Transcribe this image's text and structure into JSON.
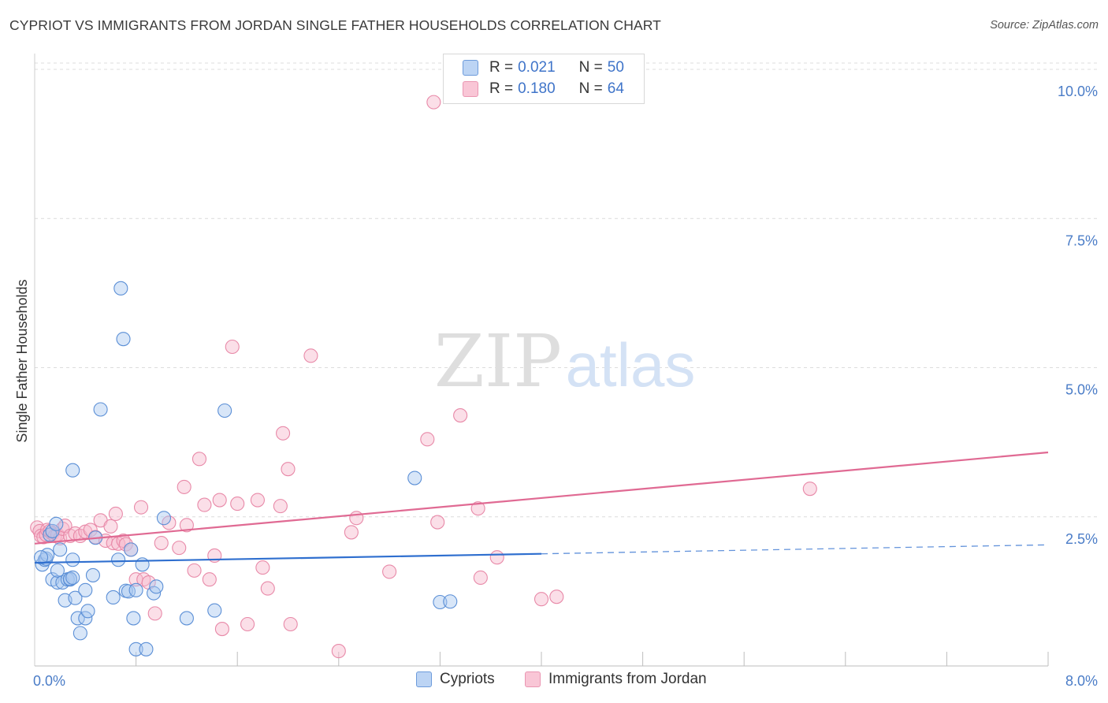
{
  "header": {
    "title": "CYPRIOT VS IMMIGRANTS FROM JORDAN SINGLE FATHER HOUSEHOLDS CORRELATION CHART",
    "source": "Source: ZipAtlas.com"
  },
  "watermark": {
    "zip": "ZIP",
    "atlas": "atlas"
  },
  "colors": {
    "cypriot_fill": "#a9c8f0",
    "cypriot_stroke": "#5b8fd6",
    "cypriot_line": "#2f6fcf",
    "jordan_fill": "#f7b9cd",
    "jordan_stroke": "#e889a8",
    "jordan_line": "#e06a93",
    "tick_label": "#4a7cc7",
    "grid": "#dcdcdc"
  },
  "correlation_legend": [
    {
      "r_label": "R =",
      "r_value": "0.021",
      "n_label": "N =",
      "n_value": "50"
    },
    {
      "r_label": "R =",
      "r_value": "0.180",
      "n_label": "N =",
      "n_value": "64"
    }
  ],
  "chart_data": {
    "type": "scatter",
    "title": "CYPRIOT VS IMMIGRANTS FROM JORDAN SINGLE FATHER HOUSEHOLDS CORRELATION CHART",
    "xlabel": "",
    "ylabel": "Single Father Households",
    "xlim": [
      0,
      8
    ],
    "ylim": [
      0,
      10.5
    ],
    "x_tick_labels": [
      "0.0%",
      "8.0%"
    ],
    "y_ticks": [
      2.5,
      5.0,
      7.5,
      10.0
    ],
    "y_tick_labels": [
      "2.5%",
      "5.0%",
      "7.5%",
      "10.0%"
    ],
    "x_minor_ticks": [
      0.8,
      1.6,
      2.4,
      3.2,
      4.0,
      4.8,
      5.6,
      6.4,
      7.2,
      8.0
    ],
    "legend_position": "top-center",
    "series": [
      {
        "name": "Cypriots",
        "trend": {
          "x_start": 0.0,
          "x_end": 4.0,
          "y_start": 1.73,
          "y_end": 1.88,
          "dash_to_x": 8.0,
          "dash_to_y": 2.03
        },
        "points": [
          [
            0.06,
            1.7
          ],
          [
            0.08,
            1.78
          ],
          [
            0.09,
            1.8
          ],
          [
            0.1,
            1.86
          ],
          [
            0.12,
            2.2
          ],
          [
            0.14,
            2.26
          ],
          [
            0.17,
            2.38
          ],
          [
            0.14,
            1.45
          ],
          [
            0.18,
            1.4
          ],
          [
            0.18,
            1.6
          ],
          [
            0.2,
            1.95
          ],
          [
            0.22,
            1.4
          ],
          [
            0.24,
            1.1
          ],
          [
            0.26,
            1.45
          ],
          [
            0.28,
            1.45
          ],
          [
            0.28,
            1.46
          ],
          [
            0.3,
            1.48
          ],
          [
            0.3,
            1.78
          ],
          [
            0.32,
            1.14
          ],
          [
            0.34,
            0.8
          ],
          [
            0.36,
            0.55
          ],
          [
            0.4,
            0.8
          ],
          [
            0.4,
            1.27
          ],
          [
            0.42,
            0.92
          ],
          [
            0.46,
            1.52
          ],
          [
            0.48,
            2.15
          ],
          [
            0.3,
            3.28
          ],
          [
            0.52,
            4.3
          ],
          [
            0.62,
            1.15
          ],
          [
            0.66,
            1.78
          ],
          [
            0.68,
            6.33
          ],
          [
            0.7,
            5.48
          ],
          [
            0.72,
            1.26
          ],
          [
            0.74,
            1.25
          ],
          [
            0.76,
            1.95
          ],
          [
            0.78,
            0.8
          ],
          [
            0.8,
            1.27
          ],
          [
            0.8,
            0.28
          ],
          [
            0.85,
            1.7
          ],
          [
            0.88,
            0.28
          ],
          [
            0.94,
            1.22
          ],
          [
            0.96,
            1.33
          ],
          [
            1.02,
            2.48
          ],
          [
            1.2,
            0.8
          ],
          [
            1.42,
            0.93
          ],
          [
            1.5,
            4.28
          ],
          [
            3.0,
            3.15
          ],
          [
            3.2,
            1.07
          ],
          [
            3.28,
            1.08
          ],
          [
            0.05,
            1.82
          ]
        ]
      },
      {
        "name": "Immigrants from Jordan",
        "trend": {
          "x_start": 0.0,
          "x_end": 8.0,
          "y_start": 2.05,
          "y_end": 3.58
        },
        "points": [
          [
            0.02,
            2.32
          ],
          [
            0.04,
            2.26
          ],
          [
            0.05,
            2.18
          ],
          [
            0.07,
            2.16
          ],
          [
            0.09,
            2.2
          ],
          [
            0.1,
            2.28
          ],
          [
            0.12,
            2.26
          ],
          [
            0.14,
            2.22
          ],
          [
            0.16,
            2.18
          ],
          [
            0.18,
            2.2
          ],
          [
            0.2,
            2.14
          ],
          [
            0.22,
            2.3
          ],
          [
            0.24,
            2.35
          ],
          [
            0.28,
            2.18
          ],
          [
            0.32,
            2.22
          ],
          [
            0.36,
            2.18
          ],
          [
            0.4,
            2.25
          ],
          [
            0.44,
            2.28
          ],
          [
            0.48,
            2.16
          ],
          [
            0.52,
            2.44
          ],
          [
            0.56,
            2.1
          ],
          [
            0.6,
            2.34
          ],
          [
            0.62,
            2.06
          ],
          [
            0.64,
            2.55
          ],
          [
            0.66,
            2.05
          ],
          [
            0.7,
            2.1
          ],
          [
            0.72,
            2.04
          ],
          [
            0.76,
            1.95
          ],
          [
            0.8,
            1.45
          ],
          [
            0.84,
            2.66
          ],
          [
            0.86,
            1.45
          ],
          [
            0.9,
            1.4
          ],
          [
            0.95,
            0.88
          ],
          [
            1.0,
            2.06
          ],
          [
            1.06,
            2.4
          ],
          [
            1.14,
            1.98
          ],
          [
            1.18,
            3.0
          ],
          [
            1.2,
            2.36
          ],
          [
            1.26,
            1.6
          ],
          [
            1.3,
            3.47
          ],
          [
            1.34,
            2.7
          ],
          [
            1.38,
            1.45
          ],
          [
            1.42,
            1.85
          ],
          [
            1.46,
            2.78
          ],
          [
            1.48,
            0.62
          ],
          [
            1.56,
            5.35
          ],
          [
            1.6,
            2.72
          ],
          [
            1.68,
            0.7
          ],
          [
            1.76,
            2.78
          ],
          [
            1.8,
            1.65
          ],
          [
            1.84,
            1.3
          ],
          [
            1.94,
            2.68
          ],
          [
            1.96,
            3.9
          ],
          [
            2.0,
            3.3
          ],
          [
            2.02,
            0.7
          ],
          [
            2.18,
            5.2
          ],
          [
            2.4,
            0.25
          ],
          [
            2.5,
            2.24
          ],
          [
            2.54,
            2.48
          ],
          [
            2.8,
            1.58
          ],
          [
            3.1,
            3.8
          ],
          [
            3.15,
            9.45
          ],
          [
            3.18,
            2.41
          ],
          [
            3.36,
            4.2
          ]
        ]
      }
    ]
  },
  "legend_extra_points": {
    "jordan_more": [
      [
        3.5,
        2.64
      ],
      [
        3.52,
        1.48
      ],
      [
        3.65,
        1.82
      ],
      [
        4.0,
        1.12
      ],
      [
        4.12,
        1.16
      ],
      [
        6.12,
        2.97
      ]
    ]
  },
  "bottom_legend": {
    "cypriots": "Cypriots",
    "jordan": "Immigrants from Jordan"
  }
}
